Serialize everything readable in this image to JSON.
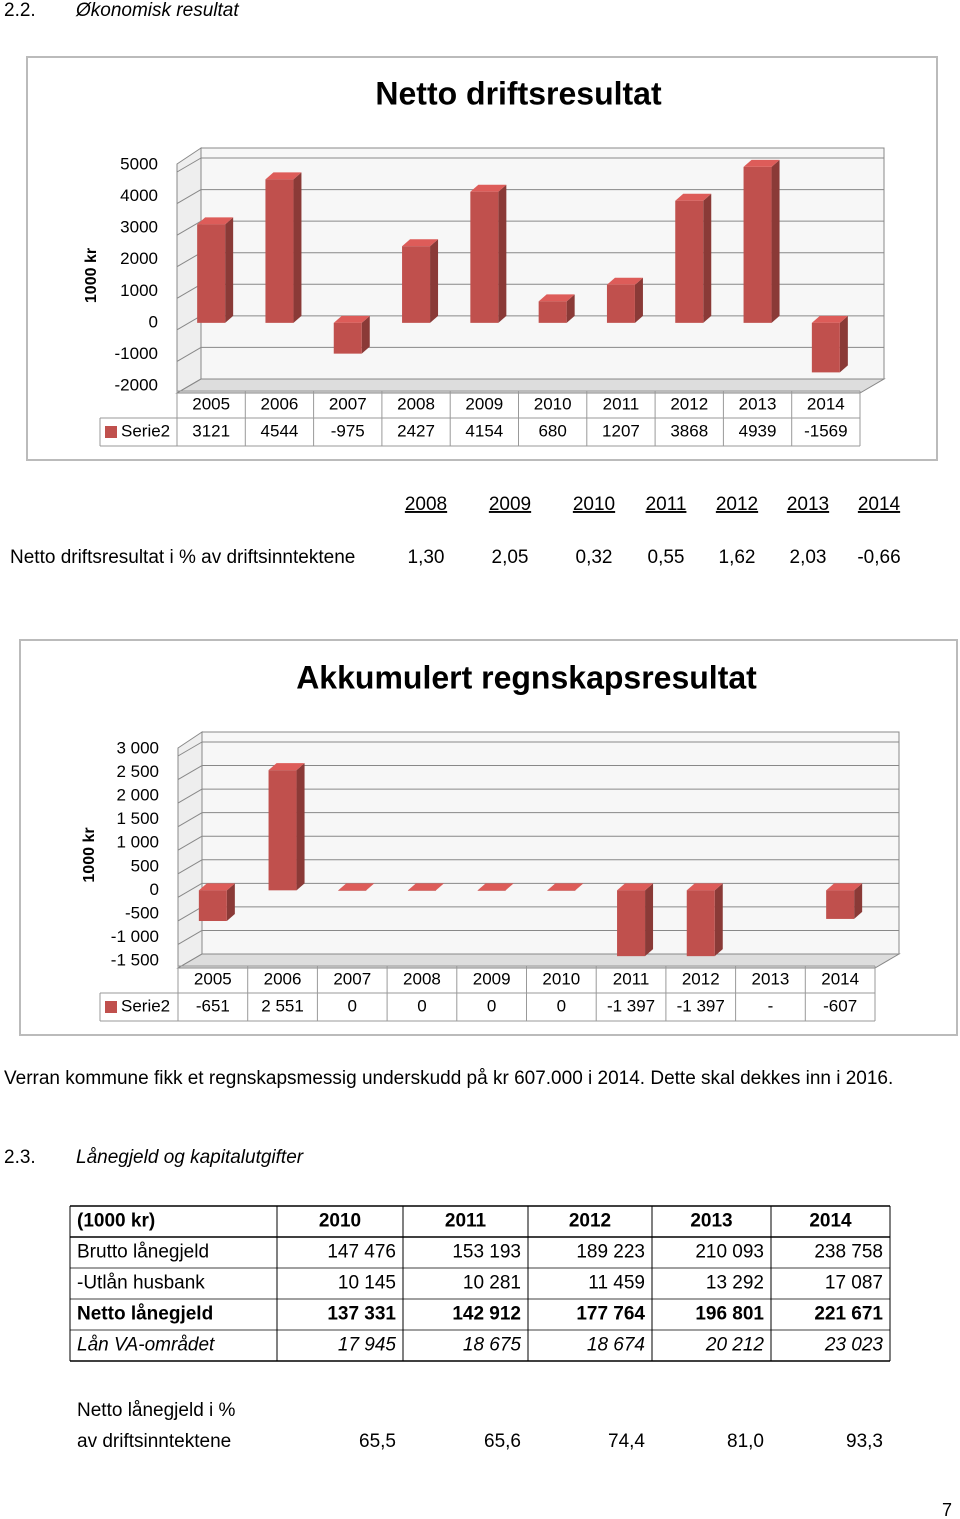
{
  "section_2_2": {
    "number": "2.2.",
    "title": "Økonomisk resultat"
  },
  "chart_data": [
    {
      "type": "bar",
      "title": "Netto driftsresultat",
      "y_label": "1000 kr",
      "categories": [
        "2005",
        "2006",
        "2007",
        "2008",
        "2009",
        "2010",
        "2011",
        "2012",
        "2013",
        "2014"
      ],
      "series": [
        {
          "name": "Serie2",
          "color": "#c0504d",
          "values": [
            3121,
            4544,
            -975,
            2427,
            4154,
            680,
            1207,
            3868,
            4939,
            -1569
          ]
        }
      ],
      "ylim": [
        -2000,
        5000
      ],
      "yticks": [
        -2000,
        -1000,
        0,
        1000,
        2000,
        3000,
        4000,
        5000
      ],
      "grid": true
    },
    {
      "type": "bar",
      "title": "Akkumulert regnskapsresultat",
      "y_label": "1000 kr",
      "categories": [
        "2005",
        "2006",
        "2007",
        "2008",
        "2009",
        "2010",
        "2011",
        "2012",
        "2013",
        "2014"
      ],
      "series": [
        {
          "name": "Serie2",
          "color": "#c0504d",
          "values": [
            -651,
            2551,
            0,
            0,
            0,
            0,
            -1397,
            -1397,
            null,
            -607
          ],
          "value_labels": [
            "-651",
            "2 551",
            "0",
            "0",
            "0",
            "0",
            "-1 397",
            "-1 397",
            "-",
            "-607"
          ]
        }
      ],
      "ylim": [
        -1500,
        3000
      ],
      "yticks": [
        {
          "value": -1500,
          "label": "-1 500"
        },
        {
          "value": -1000,
          "label": "-1 000"
        },
        -500,
        0,
        500,
        {
          "value": 1000,
          "label": "1 000"
        },
        {
          "value": 1500,
          "label": "1 500"
        },
        {
          "value": 2000,
          "label": "2 000"
        },
        {
          "value": 2500,
          "label": "2 500"
        },
        {
          "value": 3000,
          "label": "3 000"
        }
      ],
      "grid": true
    }
  ],
  "pct_table": {
    "years": [
      "2008",
      "2009",
      "2010",
      "2011",
      "2012",
      "2013",
      "2014"
    ],
    "label": "Netto driftsresultat i % av driftsinntektene",
    "values": [
      "1,30",
      "2,05",
      "0,32",
      "0,55",
      "1,62",
      "2,03",
      "-0,66"
    ]
  },
  "paragraph": "Verran kommune fikk et regnskapsmessig underskudd på kr 607.000 i 2014. Dette skal dekkes inn i 2016.",
  "section_2_3": {
    "number": "2.3.",
    "title": "Lånegjeld og kapitalutgifter"
  },
  "loan_table": {
    "rows": [
      [
        "(1000 kr)",
        "2010",
        "2011",
        "2012",
        "2013",
        "2014"
      ],
      [
        "Brutto lånegjeld",
        "147 476",
        "153 193",
        "189 223",
        "210 093",
        "238 758"
      ],
      [
        "-Utlån husbank",
        "10 145",
        "10 281",
        "11 459",
        "13 292",
        "17 087"
      ],
      [
        "Netto lånegjeld",
        "137 331",
        "142 912",
        "177 764",
        "196 801",
        "221 671"
      ],
      [
        "Lån VA-området",
        "17 945",
        "18 675",
        "18 674",
        "20 212",
        "23 023"
      ]
    ]
  },
  "loan_note": {
    "lines": [
      "Netto lånegjeld i %",
      "av driftsinntektene"
    ],
    "values": [
      "65,5",
      "65,6",
      "74,4",
      "81,0",
      "93,3"
    ]
  },
  "page_number": "7"
}
